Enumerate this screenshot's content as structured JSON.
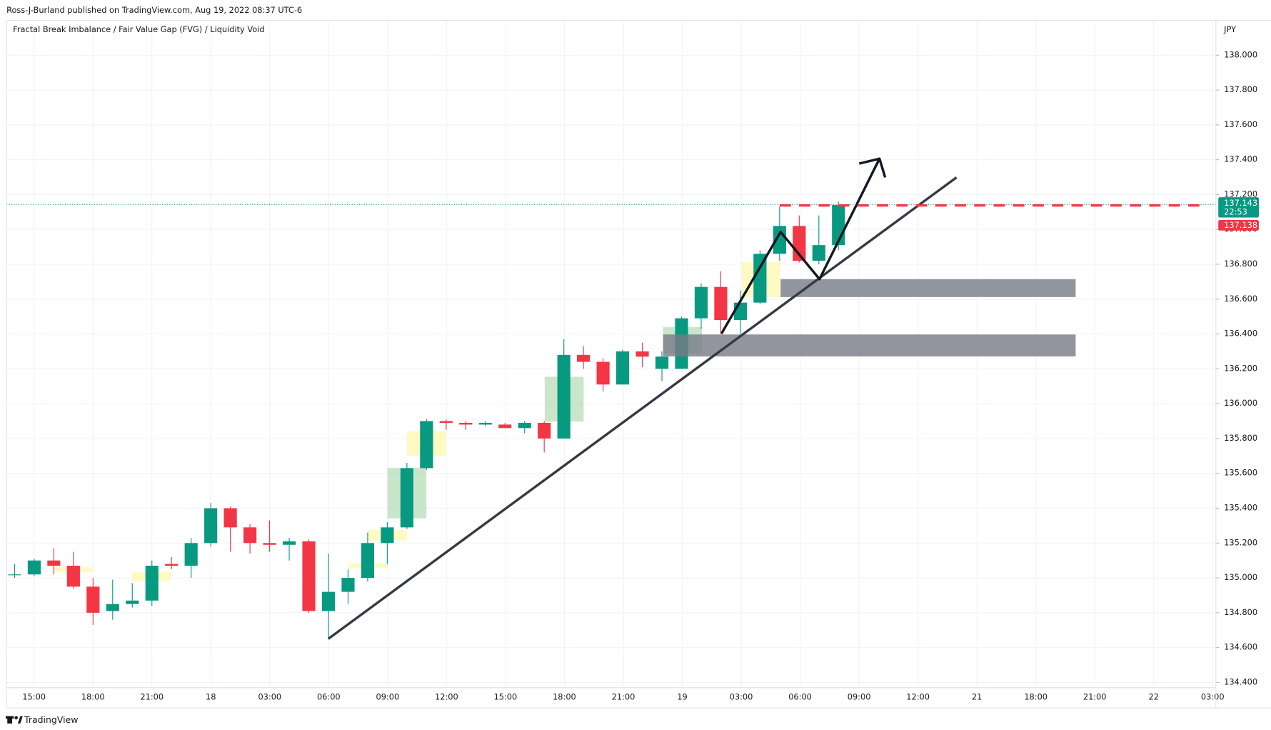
{
  "chart_data": {
    "type": "candlestick",
    "header": "Ross-J-Burland published on TradingView.com, Aug 19, 2022 08:37 UTC-6",
    "title": "Fractal Break Imbalance / Fair Value Gap (FVG) / Liquidity Void",
    "currency": "JPY",
    "brand": "TradingView",
    "up_color": "#089981",
    "down_color": "#f23645",
    "open": [
      135.02,
      135.02,
      135.1,
      135.07,
      134.95,
      134.81,
      134.85,
      134.87,
      135.08,
      135.07,
      135.2,
      135.4,
      135.29,
      135.2,
      135.19,
      135.21,
      134.81,
      134.92,
      135.0,
      135.2,
      135.29,
      135.63,
      135.9,
      135.89,
      135.88,
      135.88,
      135.86,
      135.89,
      135.8,
      136.28,
      136.24,
      136.11,
      136.3,
      136.2,
      136.2,
      136.49,
      136.67,
      136.48,
      136.58,
      136.86,
      137.02,
      136.82,
      136.91
    ],
    "high": [
      135.08,
      135.11,
      135.17,
      135.15,
      135.0,
      134.99,
      134.97,
      135.1,
      135.12,
      135.23,
      135.43,
      135.41,
      135.31,
      135.33,
      135.23,
      135.22,
      135.14,
      135.05,
      135.26,
      135.32,
      135.66,
      135.91,
      135.91,
      135.9,
      135.9,
      135.89,
      135.9,
      135.9,
      136.37,
      136.33,
      136.26,
      136.31,
      136.35,
      136.3,
      136.5,
      136.69,
      136.76,
      136.65,
      136.88,
      137.13,
      137.08,
      137.08,
      137.16
    ],
    "low": [
      135.0,
      135.01,
      135.02,
      134.94,
      134.73,
      134.76,
      134.83,
      134.84,
      135.05,
      135.0,
      135.18,
      135.15,
      135.14,
      135.15,
      135.1,
      134.8,
      134.66,
      134.85,
      134.98,
      135.08,
      135.28,
      135.62,
      135.85,
      135.85,
      135.87,
      135.86,
      135.83,
      135.72,
      135.8,
      136.2,
      136.07,
      136.11,
      136.21,
      136.13,
      136.2,
      136.43,
      136.4,
      136.4,
      136.57,
      136.82,
      136.81,
      136.8,
      136.88
    ],
    "close": [
      135.02,
      135.1,
      135.07,
      134.95,
      134.8,
      134.85,
      134.87,
      135.07,
      135.07,
      135.2,
      135.4,
      135.29,
      135.2,
      135.19,
      135.21,
      134.81,
      134.92,
      135.0,
      135.2,
      135.29,
      135.63,
      135.9,
      135.89,
      135.88,
      135.89,
      135.86,
      135.89,
      135.8,
      136.28,
      136.24,
      136.11,
      136.3,
      136.27,
      136.27,
      136.49,
      136.67,
      136.48,
      136.58,
      136.86,
      137.02,
      136.82,
      136.91,
      137.14
    ],
    "xticks": [
      "15:00",
      "18:00",
      "21:00",
      "18",
      "03:00",
      "06:00",
      "09:00",
      "12:00",
      "15:00",
      "18:00",
      "21:00",
      "19",
      "03:00",
      "06:00",
      "09:00",
      "12:00",
      "21",
      "18:00",
      "21:00",
      "22",
      "03:00"
    ],
    "ylim": [
      134.37,
      138.2
    ],
    "yticks": [
      {
        "value": 134.4,
        "label": "134.400"
      },
      {
        "value": 134.6,
        "label": "134.600"
      },
      {
        "value": 134.8,
        "label": "134.800"
      },
      {
        "value": 135.0,
        "label": "135.000"
      },
      {
        "value": 135.2,
        "label": "135.200"
      },
      {
        "value": 135.4,
        "label": "135.400"
      },
      {
        "value": 135.6,
        "label": "135.600"
      },
      {
        "value": 135.8,
        "label": "135.800"
      },
      {
        "value": 136.0,
        "label": "136.000"
      },
      {
        "value": 136.2,
        "label": "136.200"
      },
      {
        "value": 136.4,
        "label": "136.400"
      },
      {
        "value": 136.6,
        "label": "136.600"
      },
      {
        "value": 136.8,
        "label": "136.800"
      },
      {
        "value": 137.0,
        "label": "137.000"
      },
      {
        "value": 137.2,
        "label": "137.200"
      },
      {
        "value": 137.4,
        "label": "137.400"
      },
      {
        "value": 137.6,
        "label": "137.600"
      },
      {
        "value": 137.8,
        "label": "137.800"
      },
      {
        "value": 138.0,
        "label": "138.000"
      }
    ],
    "grid": true,
    "last_price": 137.143,
    "countdown": "22:53",
    "bid_price": 137.138
  }
}
